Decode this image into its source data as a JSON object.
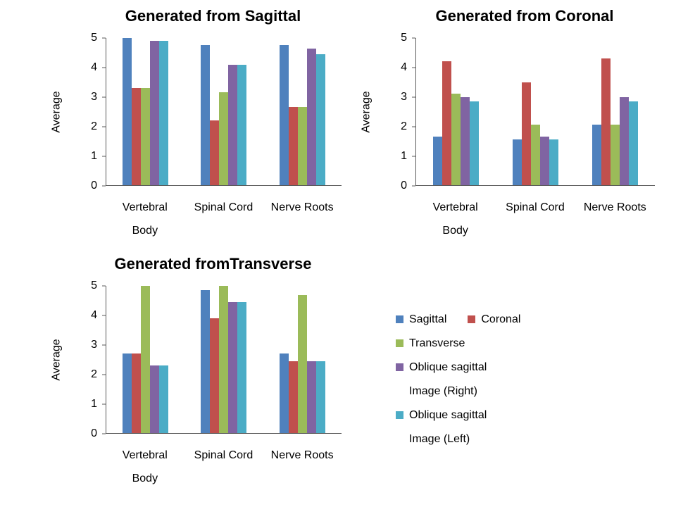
{
  "series_colors": [
    "#4F81BD",
    "#C0504D",
    "#9BBB59",
    "#8064A2",
    "#4BACC6"
  ],
  "legend": {
    "items": [
      "Sagittal",
      "Coronal",
      "Transverse",
      "Oblique sagittal Image (Right)",
      "Oblique sagittal Image (Left)"
    ]
  },
  "chart_data": [
    {
      "type": "bar",
      "title": "Generated from Sagittal",
      "xlabel": "",
      "ylabel": "Average",
      "ylim": [
        0,
        5
      ],
      "yticks": [
        0,
        1,
        2,
        3,
        4,
        5
      ],
      "grid": false,
      "categories": [
        "Vertebral Body",
        "Spinal Cord",
        "Nerve Roots"
      ],
      "series": [
        {
          "name": "Sagittal",
          "values": [
            5.0,
            4.75,
            4.75
          ]
        },
        {
          "name": "Coronal",
          "values": [
            3.3,
            2.2,
            2.65
          ]
        },
        {
          "name": "Transverse",
          "values": [
            3.3,
            3.15,
            2.65
          ]
        },
        {
          "name": "Oblique sagittal Image (Right)",
          "values": [
            4.9,
            4.1,
            4.65
          ]
        },
        {
          "name": "Oblique sagittal Image (Left)",
          "values": [
            4.9,
            4.1,
            4.45
          ]
        }
      ]
    },
    {
      "type": "bar",
      "title": "Generated from Coronal",
      "xlabel": "",
      "ylabel": "Average",
      "ylim": [
        0,
        5
      ],
      "yticks": [
        0,
        1,
        2,
        3,
        4,
        5
      ],
      "grid": false,
      "categories": [
        "Vertebral Body",
        "Spinal Cord",
        "Nerve Roots"
      ],
      "series": [
        {
          "name": "Sagittal",
          "values": [
            1.65,
            1.55,
            2.05
          ]
        },
        {
          "name": "Coronal",
          "values": [
            4.2,
            3.5,
            4.3
          ]
        },
        {
          "name": "Transverse",
          "values": [
            3.1,
            2.05,
            2.05
          ]
        },
        {
          "name": "Oblique sagittal Image (Right)",
          "values": [
            3.0,
            1.65,
            3.0
          ]
        },
        {
          "name": "Oblique sagittal Image (Left)",
          "values": [
            2.85,
            1.55,
            2.85
          ]
        }
      ]
    },
    {
      "type": "bar",
      "title": "Generated fromTransverse",
      "xlabel": "",
      "ylabel": "Average",
      "ylim": [
        0,
        5
      ],
      "yticks": [
        0,
        1,
        2,
        3,
        4,
        5
      ],
      "grid": false,
      "categories": [
        "Vertebral Body",
        "Spinal Cord",
        "Nerve Roots"
      ],
      "series": [
        {
          "name": "Sagittal",
          "values": [
            2.7,
            4.85,
            2.7
          ]
        },
        {
          "name": "Coronal",
          "values": [
            2.7,
            3.9,
            2.45
          ]
        },
        {
          "name": "Transverse",
          "values": [
            5.0,
            5.0,
            4.7
          ]
        },
        {
          "name": "Oblique sagittal Image (Right)",
          "values": [
            2.3,
            4.45,
            2.45
          ]
        },
        {
          "name": "Oblique sagittal Image (Left)",
          "values": [
            2.3,
            4.45,
            2.45
          ]
        }
      ]
    }
  ]
}
